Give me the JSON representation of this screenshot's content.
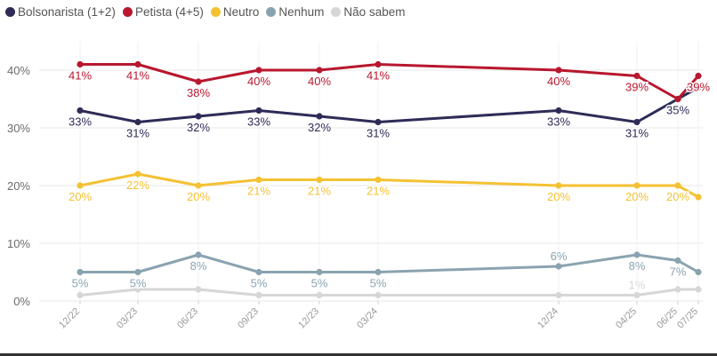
{
  "chart_data": {
    "type": "line",
    "title": "",
    "xlabel": "",
    "ylabel": "",
    "categories": [
      "12/22",
      "03/23",
      "06/23",
      "09/23",
      "12/23",
      "03/24",
      "12/24",
      "04/25",
      "06/25",
      "07/25"
    ],
    "y_ticks": [
      "0%",
      "10%",
      "20%",
      "30%",
      "40%"
    ],
    "ylim": [
      0,
      45
    ],
    "grid": true,
    "legend_position": "top-left",
    "series": [
      {
        "name": "Bolsonarista (1+2)",
        "color": "#2e2c57",
        "values": [
          33,
          31,
          32,
          33,
          32,
          31,
          33,
          31,
          35,
          37
        ],
        "labels": [
          "33%",
          "31%",
          "32%",
          "33%",
          "32%",
          "31%",
          "33%",
          "31%",
          "35%",
          ""
        ],
        "label_pos": [
          "below",
          "below",
          "below",
          "below",
          "below",
          "below",
          "below",
          "below",
          "below",
          "none"
        ]
      },
      {
        "name": "Petista (4+5)",
        "color": "#b8172f",
        "values": [
          41,
          41,
          38,
          40,
          40,
          41,
          40,
          39,
          35,
          39
        ],
        "labels": [
          "41%",
          "41%",
          "38%",
          "40%",
          "40%",
          "41%",
          "40%",
          "39%",
          "",
          "39%"
        ],
        "label_pos": [
          "below",
          "below",
          "below",
          "below",
          "below",
          "below",
          "below",
          "below",
          "none",
          "below"
        ]
      },
      {
        "name": "Neutro",
        "color": "#f4c132",
        "values": [
          20,
          22,
          20,
          21,
          21,
          21,
          20,
          20,
          20,
          18
        ],
        "labels": [
          "20%",
          "22%",
          "20%",
          "21%",
          "21%",
          "21%",
          "20%",
          "20%",
          "20%",
          ""
        ],
        "label_pos": [
          "below",
          "below",
          "below",
          "below",
          "below",
          "below",
          "below",
          "below",
          "below",
          "none"
        ]
      },
      {
        "name": "Nenhum",
        "color": "#8aa3b0",
        "values": [
          5,
          5,
          8,
          5,
          5,
          5,
          6,
          8,
          7,
          5
        ],
        "labels": [
          "5%",
          "5%",
          "8%",
          "5%",
          "5%",
          "5%",
          "6%",
          "8%",
          "7%",
          ""
        ],
        "label_pos": [
          "below",
          "below",
          "below",
          "below",
          "below",
          "below",
          "above",
          "below",
          "below",
          "none"
        ]
      },
      {
        "name": "Não sabem",
        "color": "#d6d6d6",
        "values": [
          1,
          2,
          2,
          1,
          1,
          1,
          1,
          1,
          2,
          2
        ],
        "labels": [
          "",
          "",
          "",
          "",
          "",
          "",
          "",
          "1%",
          "",
          ""
        ],
        "label_pos": [
          "none",
          "none",
          "none",
          "none",
          "none",
          "none",
          "none",
          "above",
          "none",
          "none"
        ]
      }
    ]
  }
}
